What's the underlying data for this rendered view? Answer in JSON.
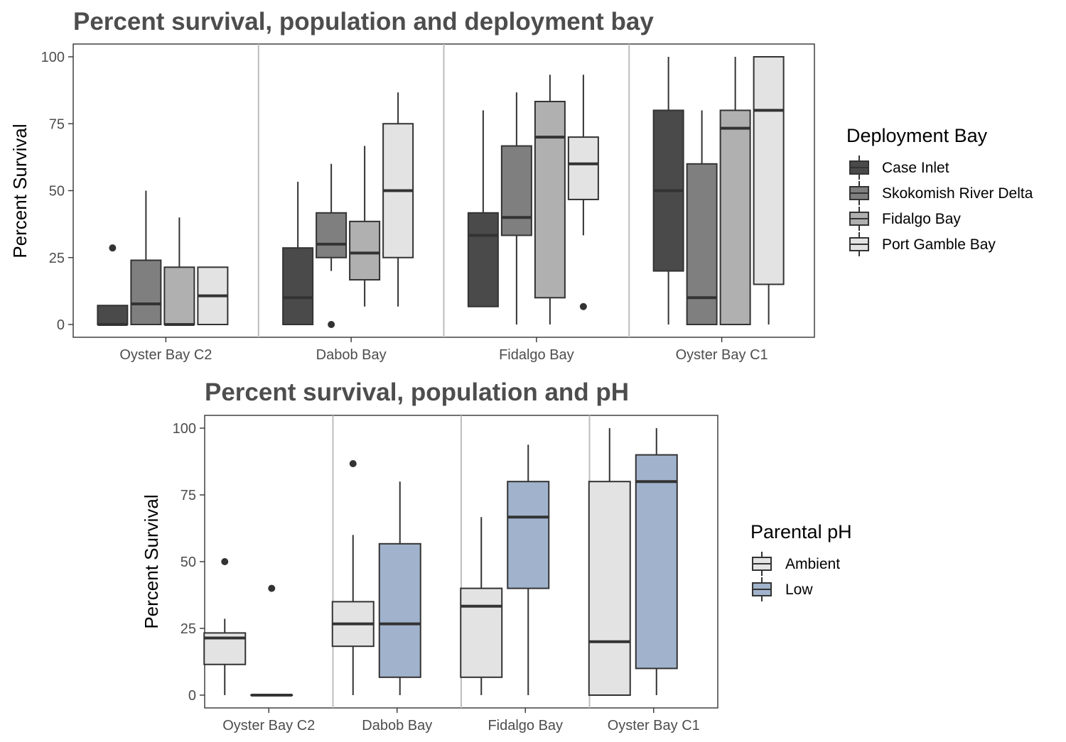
{
  "chart_data": [
    {
      "type": "boxplot",
      "title": "Percent survival, population and deployment bay",
      "ylabel": "Percent Survival",
      "xlabel": "",
      "ylim": [
        -4.5,
        105
      ],
      "yticks": [
        0,
        25,
        50,
        75,
        100
      ],
      "grid": false,
      "legend": {
        "title": "Deployment Bay",
        "position": "right"
      },
      "categories": [
        "Oyster Bay C2",
        "Dabob Bay",
        "Fidalgo Bay",
        "Oyster Bay C1"
      ],
      "series": [
        {
          "name": "Case Inlet",
          "color": "#4a4a4a",
          "boxes": [
            {
              "whisker_low": 0,
              "q1": 0,
              "median": 0,
              "q3": 7.1,
              "whisker_high": 7.1,
              "outliers": [
                28.6
              ]
            },
            {
              "whisker_low": 0,
              "q1": 0,
              "median": 10,
              "q3": 28.6,
              "whisker_high": 53.3,
              "outliers": []
            },
            {
              "whisker_low": 6.7,
              "q1": 6.7,
              "median": 33.3,
              "q3": 41.7,
              "whisker_high": 80,
              "outliers": []
            },
            {
              "whisker_low": 0,
              "q1": 20,
              "median": 50,
              "q3": 80,
              "whisker_high": 100,
              "outliers": []
            }
          ]
        },
        {
          "name": "Skokomish River Delta",
          "color": "#7f7f7f",
          "boxes": [
            {
              "whisker_low": 0,
              "q1": 0,
              "median": 7.7,
              "q3": 24,
              "whisker_high": 50,
              "outliers": []
            },
            {
              "whisker_low": 20,
              "q1": 25,
              "median": 30,
              "q3": 41.7,
              "whisker_high": 60,
              "outliers": [
                0
              ]
            },
            {
              "whisker_low": 0,
              "q1": 33.3,
              "median": 40,
              "q3": 66.7,
              "whisker_high": 86.7,
              "outliers": []
            },
            {
              "whisker_low": 0,
              "q1": 0,
              "median": 10,
              "q3": 60,
              "whisker_high": 80,
              "outliers": []
            }
          ]
        },
        {
          "name": "Fidalgo Bay",
          "color": "#b0b0b0",
          "boxes": [
            {
              "whisker_low": 0,
              "q1": 0,
              "median": 0,
              "q3": 21.4,
              "whisker_high": 40,
              "outliers": []
            },
            {
              "whisker_low": 6.7,
              "q1": 16.7,
              "median": 26.7,
              "q3": 38.5,
              "whisker_high": 66.7,
              "outliers": []
            },
            {
              "whisker_low": 0,
              "q1": 10,
              "median": 70,
              "q3": 83.3,
              "whisker_high": 93.3,
              "outliers": []
            },
            {
              "whisker_low": 0,
              "q1": 0,
              "median": 73.3,
              "q3": 80,
              "whisker_high": 100,
              "outliers": []
            }
          ]
        },
        {
          "name": "Port Gamble Bay",
          "color": "#e3e3e3",
          "boxes": [
            {
              "whisker_low": 0,
              "q1": 0,
              "median": 10.7,
              "q3": 21.4,
              "whisker_high": 21.4,
              "outliers": []
            },
            {
              "whisker_low": 6.7,
              "q1": 25,
              "median": 50,
              "q3": 75,
              "whisker_high": 86.7,
              "outliers": []
            },
            {
              "whisker_low": 33.3,
              "q1": 46.7,
              "median": 60,
              "q3": 70,
              "whisker_high": 93.3,
              "outliers": [
                6.7
              ]
            },
            {
              "whisker_low": 0,
              "q1": 15,
              "median": 80,
              "q3": 100,
              "whisker_high": 100,
              "outliers": []
            }
          ]
        }
      ]
    },
    {
      "type": "boxplot",
      "title": "Percent survival, population and pH",
      "ylabel": "Percent Survival",
      "xlabel": "",
      "ylim": [
        -4.5,
        105
      ],
      "yticks": [
        0,
        25,
        50,
        75,
        100
      ],
      "grid": false,
      "legend": {
        "title": "Parental pH",
        "position": "right"
      },
      "categories": [
        "Oyster Bay C2",
        "Dabob Bay",
        "Fidalgo Bay",
        "Oyster Bay C1"
      ],
      "series": [
        {
          "name": "Ambient",
          "color": "#e3e3e3",
          "boxes": [
            {
              "whisker_low": 0,
              "q1": 11.5,
              "median": 21.4,
              "q3": 23.3,
              "whisker_high": 28.6,
              "outliers": [
                50
              ]
            },
            {
              "whisker_low": 0,
              "q1": 18.3,
              "median": 26.7,
              "q3": 35,
              "whisker_high": 60,
              "outliers": [
                86.7
              ]
            },
            {
              "whisker_low": 0,
              "q1": 6.7,
              "median": 33.3,
              "q3": 40,
              "whisker_high": 66.7,
              "outliers": []
            },
            {
              "whisker_low": 0,
              "q1": 0,
              "median": 20,
              "q3": 80,
              "whisker_high": 100,
              "outliers": []
            }
          ]
        },
        {
          "name": "Low",
          "color": "#a1b3cc",
          "boxes": [
            {
              "whisker_low": 0,
              "q1": 0,
              "median": 0,
              "q3": 0,
              "whisker_high": 0,
              "outliers": [
                40
              ]
            },
            {
              "whisker_low": 0,
              "q1": 6.7,
              "median": 26.7,
              "q3": 56.7,
              "whisker_high": 80,
              "outliers": []
            },
            {
              "whisker_low": 0,
              "q1": 40,
              "median": 66.7,
              "q3": 80,
              "whisker_high": 93.8,
              "outliers": []
            },
            {
              "whisker_low": 0,
              "q1": 10,
              "median": 80,
              "q3": 90,
              "whisker_high": 100,
              "outliers": []
            }
          ]
        }
      ]
    }
  ]
}
